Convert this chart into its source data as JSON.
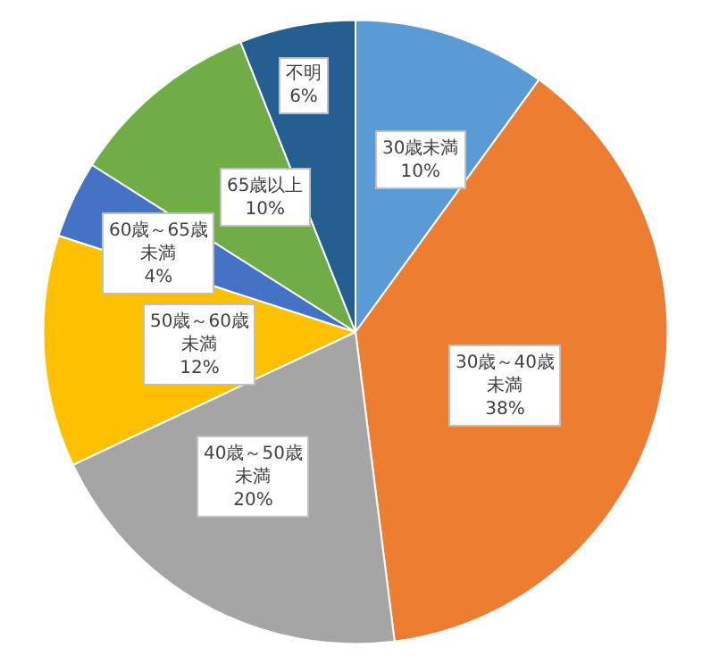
{
  "chart_data": {
    "type": "pie",
    "categories": [
      "30歳未満",
      "30歳～40歳未満",
      "40歳～50歳未満",
      "50歳～60歳未満",
      "60歳～65歳未満",
      "65歳以上",
      "不明"
    ],
    "values": [
      10,
      38,
      20,
      12,
      4,
      10,
      6
    ],
    "value_labels": [
      "10%",
      "38%",
      "20%",
      "12%",
      "4%",
      "10%",
      "6%"
    ],
    "colors": [
      "#5b9bd5",
      "#ed7d31",
      "#a5a5a5",
      "#ffc000",
      "#4472c4",
      "#70ad47",
      "#255e91"
    ],
    "legend": false
  }
}
